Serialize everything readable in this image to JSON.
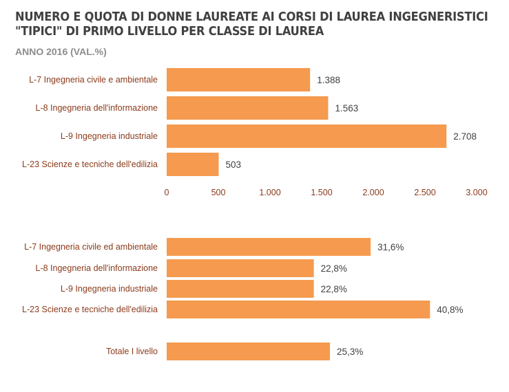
{
  "title": "NUMERO E QUOTA DI DONNE LAUREATE AI CORSI DI LAUREA INGEGNERISTICI \"TIPICI\" DI PRIMO LIVELLO PER CLASSE DI LAUREA",
  "subtitle": "ANNO 2016 (VAL.%)",
  "colors": {
    "bar": "#F59A4E",
    "category_text": "#8B3A1A",
    "value_text": "#404040",
    "axis_text": "#8B3A1A",
    "title": "#404040",
    "subtitle": "#8c8c8c"
  },
  "chart_data": [
    {
      "type": "bar",
      "orientation": "horizontal",
      "categories": [
        "L-7 Ingegneria civile e ambientale",
        "L-8 Ingegneria dell'informazione",
        "L-9 Ingegneria industriale",
        "L-23 Scienze e tecniche dell'edilizia"
      ],
      "values": [
        1388,
        1563,
        2708,
        503
      ],
      "value_labels": [
        "1.388",
        "1.563",
        "2.708",
        "503"
      ],
      "xlim": [
        0,
        3000
      ],
      "ticks": [
        0,
        500,
        1000,
        1500,
        2000,
        2500,
        3000
      ],
      "tick_labels": [
        "0",
        "500",
        "1.000",
        "1.500",
        "2.000",
        "2.500",
        "3.000"
      ],
      "grid": false
    },
    {
      "type": "bar",
      "orientation": "horizontal",
      "categories": [
        "L-7 Ingegneria civile ed ambientale",
        "L-8 Ingegneria dell'informazione",
        "L-9 Ingegneria industriale",
        "L-23 Scienze e tecniche dell'edilizia",
        "Totale I livello"
      ],
      "values": [
        31.6,
        22.8,
        22.8,
        40.8,
        25.3
      ],
      "value_labels": [
        "31,6%",
        "22,8%",
        "22,8%",
        "40,8%",
        "25,3%"
      ],
      "unit": "%",
      "grid": false
    }
  ]
}
